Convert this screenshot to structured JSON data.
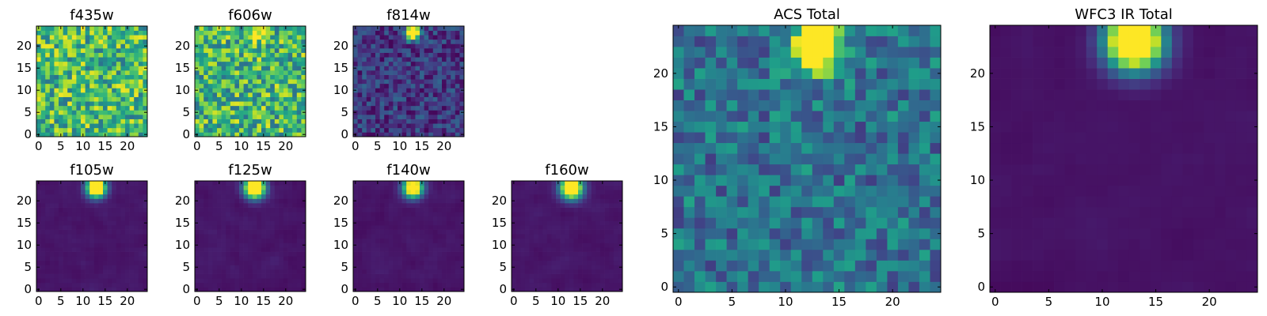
{
  "figure": {
    "colormap": "viridis",
    "background": "#ffffff",
    "frame_color": "#000000",
    "color_stops": [
      "#440154",
      "#482878",
      "#3e4989",
      "#31688e",
      "#26828e",
      "#1f9e89",
      "#35b779",
      "#6ece58",
      "#b5de2b",
      "#fde725"
    ]
  },
  "chart_data": [
    {
      "type": "heatmap",
      "name": "f435w",
      "title": "f435w",
      "image_size": [
        25,
        25
      ],
      "xlim": [
        -0.5,
        24.5
      ],
      "ylim": [
        -0.5,
        24.5
      ],
      "xticks": [
        0,
        5,
        10,
        15,
        20
      ],
      "yticks": [
        0,
        5,
        10,
        15,
        20
      ],
      "grid": false,
      "pattern": "noise",
      "noise_base": 0.68,
      "noise_spread": 0.3,
      "source": null,
      "seed": 11
    },
    {
      "type": "heatmap",
      "name": "f606w",
      "title": "f606w",
      "image_size": [
        25,
        25
      ],
      "xlim": [
        -0.5,
        24.5
      ],
      "ylim": [
        -0.5,
        24.5
      ],
      "xticks": [
        0,
        5,
        10,
        15,
        20
      ],
      "yticks": [
        0,
        5,
        10,
        15,
        20
      ],
      "grid": false,
      "pattern": "noise",
      "noise_base": 0.66,
      "noise_spread": 0.3,
      "source": {
        "x": 13,
        "y": 22.5,
        "peak": 0.3,
        "sigma": 1.5
      },
      "seed": 23
    },
    {
      "type": "heatmap",
      "name": "f814w",
      "title": "f814w",
      "image_size": [
        25,
        25
      ],
      "xlim": [
        -0.5,
        24.5
      ],
      "ylim": [
        -0.5,
        24.5
      ],
      "xticks": [
        0,
        5,
        10,
        15,
        20
      ],
      "yticks": [
        0,
        5,
        10,
        15,
        20
      ],
      "grid": false,
      "pattern": "noise",
      "noise_base": 0.17,
      "noise_spread": 0.16,
      "source": {
        "x": 13,
        "y": 23,
        "peak": 1.3,
        "sigma": 1.1
      },
      "seed": 37
    },
    {
      "type": "heatmap",
      "name": "f105w",
      "title": "f105w",
      "image_size": [
        25,
        25
      ],
      "xlim": [
        -0.5,
        24.5
      ],
      "ylim": [
        -0.5,
        24.5
      ],
      "xticks": [
        0,
        5,
        10,
        15,
        20
      ],
      "yticks": [
        0,
        5,
        10,
        15,
        20
      ],
      "grid": false,
      "pattern": "smooth",
      "noise_base": 0.06,
      "noise_spread": 0.05,
      "source": {
        "x": 13,
        "y": 23,
        "peak": 1.5,
        "sigma": 1.5
      },
      "seed": 41
    },
    {
      "type": "heatmap",
      "name": "f125w",
      "title": "f125w",
      "image_size": [
        25,
        25
      ],
      "xlim": [
        -0.5,
        24.5
      ],
      "ylim": [
        -0.5,
        24.5
      ],
      "xticks": [
        0,
        5,
        10,
        15,
        20
      ],
      "yticks": [
        0,
        5,
        10,
        15,
        20
      ],
      "grid": false,
      "pattern": "smooth",
      "noise_base": 0.06,
      "noise_spread": 0.05,
      "source": {
        "x": 13,
        "y": 23,
        "peak": 1.6,
        "sigma": 1.6
      },
      "seed": 53
    },
    {
      "type": "heatmap",
      "name": "f140w",
      "title": "f140w",
      "image_size": [
        25,
        25
      ],
      "xlim": [
        -0.5,
        24.5
      ],
      "ylim": [
        -0.5,
        24.5
      ],
      "xticks": [
        0,
        5,
        10,
        15,
        20
      ],
      "yticks": [
        0,
        5,
        10,
        15,
        20
      ],
      "grid": false,
      "pattern": "smooth",
      "noise_base": 0.06,
      "noise_spread": 0.05,
      "source": {
        "x": 13,
        "y": 23,
        "peak": 1.4,
        "sigma": 1.5
      },
      "seed": 67
    },
    {
      "type": "heatmap",
      "name": "f160w",
      "title": "f160w",
      "image_size": [
        25,
        25
      ],
      "xlim": [
        -0.5,
        24.5
      ],
      "ylim": [
        -0.5,
        24.5
      ],
      "xticks": [
        0,
        5,
        10,
        15,
        20
      ],
      "yticks": [
        0,
        5,
        10,
        15,
        20
      ],
      "grid": false,
      "pattern": "smooth",
      "noise_base": 0.06,
      "noise_spread": 0.05,
      "source": {
        "x": 13,
        "y": 23,
        "peak": 1.5,
        "sigma": 1.7
      },
      "seed": 71
    },
    {
      "type": "heatmap",
      "name": "ACS Total",
      "title": "ACS Total",
      "image_size": [
        25,
        25
      ],
      "xlim": [
        -0.5,
        24.5
      ],
      "ylim": [
        -0.5,
        24.5
      ],
      "xticks": [
        0,
        5,
        10,
        15,
        20
      ],
      "yticks": [
        0,
        5,
        10,
        15,
        20
      ],
      "grid": false,
      "pattern": "noise",
      "noise_base": 0.38,
      "noise_spread": 0.2,
      "source": {
        "x": 13,
        "y": 22.5,
        "peak": 1.0,
        "sigma": 1.6
      },
      "seed": 89
    },
    {
      "type": "heatmap",
      "name": "WFC3 IR Total",
      "title": "WFC3 IR Total",
      "image_size": [
        25,
        25
      ],
      "xlim": [
        -0.5,
        24.5
      ],
      "ylim": [
        -0.5,
        24.5
      ],
      "xticks": [
        0,
        5,
        10,
        15,
        20
      ],
      "yticks": [
        0,
        5,
        10,
        15,
        20
      ],
      "grid": false,
      "pattern": "smooth",
      "noise_base": 0.05,
      "noise_spread": 0.03,
      "source": {
        "x": 13,
        "y": 23,
        "peak": 1.6,
        "sigma": 1.8
      },
      "seed": 97
    }
  ]
}
